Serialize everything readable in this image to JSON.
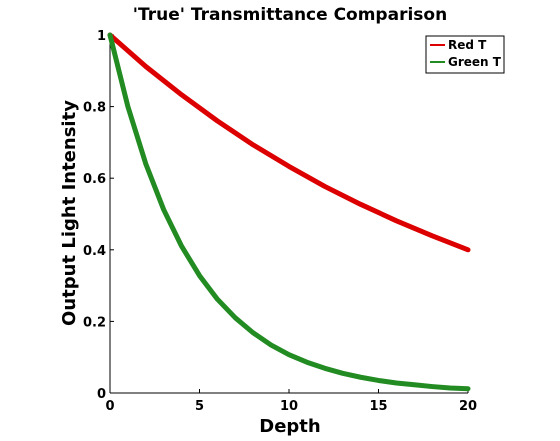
{
  "chart_data": {
    "type": "line",
    "title": "'True' Transmittance Comparison",
    "xlabel": "Depth",
    "ylabel": "Output Light Intensity",
    "xlim": [
      0,
      20
    ],
    "ylim": [
      0,
      1
    ],
    "xticks": [
      0,
      5,
      10,
      15,
      20
    ],
    "yticks": [
      0,
      0.2,
      0.4,
      0.6,
      0.8,
      1
    ],
    "xtick_labels": [
      "0",
      "5",
      "10",
      "15",
      "20"
    ],
    "ytick_labels": [
      "0",
      "0.2",
      "0.4",
      "0.6",
      "0.8",
      "1"
    ],
    "grid": false,
    "legend_position": "top-right",
    "series": [
      {
        "name": "Red T",
        "color": "#dd0000",
        "x": [
          0,
          2,
          4,
          6,
          8,
          10,
          12,
          14,
          16,
          18,
          20
        ],
        "y": [
          1.0,
          0.912,
          0.833,
          0.76,
          0.693,
          0.633,
          0.577,
          0.527,
          0.481,
          0.439,
          0.4
        ]
      },
      {
        "name": "Green T",
        "color": "#228b22",
        "x": [
          0,
          1,
          2,
          3,
          4,
          5,
          6,
          7,
          8,
          9,
          10,
          11,
          12,
          13,
          14,
          15,
          16,
          17,
          18,
          19,
          20
        ],
        "y": [
          1.0,
          0.8,
          0.64,
          0.512,
          0.41,
          0.328,
          0.262,
          0.21,
          0.168,
          0.134,
          0.107,
          0.086,
          0.069,
          0.055,
          0.044,
          0.035,
          0.028,
          0.023,
          0.018,
          0.014,
          0.012
        ]
      }
    ]
  }
}
